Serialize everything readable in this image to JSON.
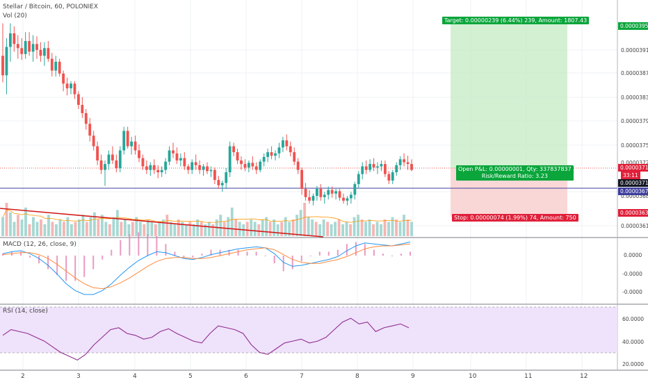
{
  "header": {
    "symbol": "Stellar / Bitcoin, 60, POLONIEX",
    "volume_label": "Vol (20)"
  },
  "panes": {
    "macd_label": "MACD (12, 26, close, 9)",
    "rsi_label": "RSI (14, close)"
  },
  "position": {
    "target_label": "Target: 0.00000239 (6.44%) 239, Amount: 1807.43",
    "stop_label": "Stop: 0.00000074 (1.99%) 74, Amount: 750",
    "pnl_label": "Open P&L: 0.00000001, Qty: 337837837",
    "rr_label": "Risk/Reward Ratio: 3.23"
  },
  "price_axis": {
    "ticks": [
      "0.00003910",
      "0.00003870",
      "0.00003830",
      "0.00003790",
      "0.00003750",
      "0.00003720",
      "0.00003685",
      "0.00003615"
    ],
    "tags": {
      "target": "0.00003950",
      "current": "0.00003712",
      "countdown": "33:11",
      "entry": "0.00003711",
      "avg": "0.00003677",
      "stop": "0.00003637"
    }
  },
  "macd_axis": {
    "ticks": [
      "0.0000",
      "-0.0000",
      "-0.0000"
    ]
  },
  "rsi_axis": {
    "ticks": [
      "60.0000",
      "40.0000",
      "20.0000"
    ]
  },
  "time_axis": {
    "ticks": [
      "2",
      "3",
      "4",
      "5",
      "6",
      "7",
      "8",
      "9",
      "10",
      "11",
      "12"
    ]
  },
  "colors": {
    "up": "#26a69a",
    "down": "#ef5350",
    "target_zone": "#c8ecc8",
    "stop_zone": "#f9cdcd",
    "tag_green": "#0aa53b",
    "tag_red": "#e0203a",
    "tag_dark": "#131722",
    "tag_blue": "#3d3d9e",
    "macd_line": "#2196f3",
    "signal_line": "#ff8a3d",
    "rsi_line": "#8e2d8e",
    "rsi_band": "#efe2fb",
    "trendline": "#d11a1a"
  },
  "chart_data": [
    {
      "type": "candlestick",
      "title": "Stellar / Bitcoin, 60, POLONIEX",
      "x_ticks": [
        "2",
        "3",
        "4",
        "5",
        "6",
        "7",
        "8",
        "9",
        "10",
        "11",
        "12"
      ],
      "ylim": [
        3.6e-05,
        3.97e-05
      ],
      "points": [
        [
          3.905e-05,
          3.96e-05,
          3.86e-05,
          3.872e-05
        ],
        [
          3.872e-05,
          3.935e-05,
          3.84e-05,
          3.92e-05
        ],
        [
          3.92e-05,
          3.96e-05,
          3.895e-05,
          3.943e-05
        ],
        [
          3.943e-05,
          3.955e-05,
          3.912e-05,
          3.925e-05
        ],
        [
          3.925e-05,
          3.94e-05,
          3.9e-05,
          3.918e-05
        ],
        [
          3.918e-05,
          3.935e-05,
          3.898e-05,
          3.908e-05
        ],
        [
          3.908e-05,
          3.945e-05,
          3.9e-05,
          3.93e-05
        ],
        [
          3.93e-05,
          3.945e-05,
          3.905e-05,
          3.912e-05
        ],
        [
          3.912e-05,
          3.94e-05,
          3.895e-05,
          3.925e-05
        ],
        [
          3.925e-05,
          3.938e-05,
          3.9e-05,
          3.915e-05
        ],
        [
          3.915e-05,
          3.928e-05,
          3.895e-05,
          3.905e-05
        ],
        [
          3.905e-05,
          3.928e-05,
          3.888e-05,
          3.918e-05
        ],
        [
          3.918e-05,
          3.93e-05,
          3.895e-05,
          3.9e-05
        ],
        [
          3.9e-05,
          3.91e-05,
          3.87e-05,
          3.88e-05
        ],
        [
          3.88e-05,
          3.905e-05,
          3.87e-05,
          3.895e-05
        ],
        [
          3.895e-05,
          3.9e-05,
          3.87e-05,
          3.875e-05
        ],
        [
          3.875e-05,
          3.88e-05,
          3.845e-05,
          3.858e-05
        ],
        [
          3.858e-05,
          3.868e-05,
          3.838e-05,
          3.85e-05
        ],
        [
          3.85e-05,
          3.862e-05,
          3.84e-05,
          3.858e-05
        ],
        [
          3.858e-05,
          3.862e-05,
          3.832e-05,
          3.84e-05
        ],
        [
          3.84e-05,
          3.845e-05,
          3.815e-05,
          3.822e-05
        ],
        [
          3.822e-05,
          3.835e-05,
          3.8e-05,
          3.808e-05
        ],
        [
          3.808e-05,
          3.815e-05,
          3.78e-05,
          3.79e-05
        ],
        [
          3.79e-05,
          3.8e-05,
          3.76e-05,
          3.77e-05
        ],
        [
          3.77e-05,
          3.778e-05,
          3.745e-05,
          3.752e-05
        ],
        [
          3.752e-05,
          3.76e-05,
          3.72e-05,
          3.728e-05
        ],
        [
          3.728e-05,
          3.738e-05,
          3.705e-05,
          3.712e-05
        ],
        [
          3.712e-05,
          3.728e-05,
          3.685e-05,
          3.722e-05
        ],
        [
          3.722e-05,
          3.745e-05,
          3.712e-05,
          3.738e-05
        ],
        [
          3.738e-05,
          3.752e-05,
          3.722e-05,
          3.728e-05
        ],
        [
          3.728e-05,
          3.738e-05,
          3.708e-05,
          3.715e-05
        ],
        [
          3.715e-05,
          3.752e-05,
          3.708e-05,
          3.745e-05
        ],
        [
          3.745e-05,
          3.785e-05,
          3.738e-05,
          3.778e-05
        ],
        [
          3.778e-05,
          3.785e-05,
          3.748e-05,
          3.752e-05
        ],
        [
          3.752e-05,
          3.768e-05,
          3.738e-05,
          3.76e-05
        ],
        [
          3.76e-05,
          3.77e-05,
          3.738e-05,
          3.745e-05
        ],
        [
          3.745e-05,
          3.755e-05,
          3.725e-05,
          3.732e-05
        ],
        [
          3.732e-05,
          3.738e-05,
          3.712e-05,
          3.718e-05
        ],
        [
          3.718e-05,
          3.728e-05,
          3.705e-05,
          3.712e-05
        ],
        [
          3.712e-05,
          3.725e-05,
          3.702e-05,
          3.72e-05
        ],
        [
          3.72e-05,
          3.73e-05,
          3.705e-05,
          3.712e-05
        ],
        [
          3.712e-05,
          3.72e-05,
          3.698e-05,
          3.708e-05
        ],
        [
          3.708e-05,
          3.718e-05,
          3.7e-05,
          3.712e-05
        ],
        [
          3.712e-05,
          3.732e-05,
          3.705e-05,
          3.726e-05
        ],
        [
          3.726e-05,
          3.752e-05,
          3.72e-05,
          3.745e-05
        ],
        [
          3.745e-05,
          3.758e-05,
          3.732e-05,
          3.74e-05
        ],
        [
          3.74e-05,
          3.75e-05,
          3.722e-05,
          3.728e-05
        ],
        [
          3.728e-05,
          3.74e-05,
          3.718e-05,
          3.732e-05
        ],
        [
          3.732e-05,
          3.742e-05,
          3.712e-05,
          3.718e-05
        ],
        [
          3.718e-05,
          3.722e-05,
          3.705e-05,
          3.712e-05
        ],
        [
          3.712e-05,
          3.73e-05,
          3.705e-05,
          3.725e-05
        ],
        [
          3.725e-05,
          3.738e-05,
          3.712e-05,
          3.72e-05
        ],
        [
          3.72e-05,
          3.728e-05,
          3.705e-05,
          3.712e-05
        ],
        [
          3.712e-05,
          3.722e-05,
          3.702e-05,
          3.718e-05
        ],
        [
          3.718e-05,
          3.725e-05,
          3.705e-05,
          3.71e-05
        ],
        [
          3.71e-05,
          3.718e-05,
          3.7e-05,
          3.712e-05
        ],
        [
          3.712e-05,
          3.716e-05,
          3.688e-05,
          3.695e-05
        ],
        [
          3.695e-05,
          3.702e-05,
          3.68e-05,
          3.686e-05
        ],
        [
          3.686e-05,
          3.694e-05,
          3.675e-05,
          3.69e-05
        ],
        [
          3.69e-05,
          3.715e-05,
          3.68e-05,
          3.708e-05
        ],
        [
          3.708e-05,
          3.76e-05,
          3.7e-05,
          3.752e-05
        ],
        [
          3.752e-05,
          3.758e-05,
          3.735e-05,
          3.742e-05
        ],
        [
          3.742e-05,
          3.748e-05,
          3.722e-05,
          3.728e-05
        ],
        [
          3.728e-05,
          3.735e-05,
          3.712e-05,
          3.722e-05
        ],
        [
          3.722e-05,
          3.73e-05,
          3.71e-05,
          3.716e-05
        ],
        [
          3.716e-05,
          3.728e-05,
          3.708e-05,
          3.724e-05
        ],
        [
          3.724e-05,
          3.735e-05,
          3.712e-05,
          3.718e-05
        ],
        [
          3.718e-05,
          3.725e-05,
          3.705e-05,
          3.712e-05
        ],
        [
          3.712e-05,
          3.73e-05,
          3.708e-05,
          3.726e-05
        ],
        [
          3.726e-05,
          3.74e-05,
          3.718e-05,
          3.734e-05
        ],
        [
          3.734e-05,
          3.748e-05,
          3.725e-05,
          3.742e-05
        ],
        [
          3.742e-05,
          3.752e-05,
          3.73e-05,
          3.736e-05
        ],
        [
          3.736e-05,
          3.745e-05,
          3.728e-05,
          3.74e-05
        ],
        [
          3.74e-05,
          3.758e-05,
          3.732e-05,
          3.75e-05
        ],
        [
          3.75e-05,
          3.768e-05,
          3.742e-05,
          3.762e-05
        ],
        [
          3.762e-05,
          3.772e-05,
          3.745e-05,
          3.752e-05
        ],
        [
          3.752e-05,
          3.76e-05,
          3.735e-05,
          3.742e-05
        ],
        [
          3.742e-05,
          3.75e-05,
          3.72e-05,
          3.726e-05
        ],
        [
          3.726e-05,
          3.732e-05,
          3.705e-05,
          3.712e-05
        ],
        [
          3.712e-05,
          3.716e-05,
          3.67e-05,
          3.68e-05
        ],
        [
          3.68e-05,
          3.69e-05,
          3.66e-05,
          3.666e-05
        ],
        [
          3.666e-05,
          3.678e-05,
          3.655e-05,
          3.66e-05
        ],
        [
          3.66e-05,
          3.672e-05,
          3.652e-05,
          3.668e-05
        ],
        [
          3.668e-05,
          3.685e-05,
          3.66e-05,
          3.68e-05
        ],
        [
          3.68e-05,
          3.688e-05,
          3.66e-05,
          3.666e-05
        ],
        [
          3.666e-05,
          3.675e-05,
          3.655e-05,
          3.67e-05
        ],
        [
          3.67e-05,
          3.684e-05,
          3.662e-05,
          3.678e-05
        ],
        [
          3.678e-05,
          3.684e-05,
          3.665e-05,
          3.672e-05
        ],
        [
          3.672e-05,
          3.68e-05,
          3.662e-05,
          3.676e-05
        ],
        [
          3.676e-05,
          3.68e-05,
          3.66e-05,
          3.665e-05
        ],
        [
          3.665e-05,
          3.672e-05,
          3.655e-05,
          3.66e-05
        ],
        [
          3.66e-05,
          3.668e-05,
          3.652e-05,
          3.664e-05
        ],
        [
          3.664e-05,
          3.675e-05,
          3.655e-05,
          3.67e-05
        ],
        [
          3.67e-05,
          3.692e-05,
          3.662e-05,
          3.688e-05
        ],
        [
          3.688e-05,
          3.71e-05,
          3.682e-05,
          3.705e-05
        ],
        [
          3.705e-05,
          3.725e-05,
          3.696e-05,
          3.718e-05
        ],
        [
          3.718e-05,
          3.728e-05,
          3.705e-05,
          3.712e-05
        ],
        [
          3.712e-05,
          3.73e-05,
          3.708e-05,
          3.722e-05
        ],
        [
          3.722e-05,
          3.732e-05,
          3.71e-05,
          3.716e-05
        ],
        [
          3.716e-05,
          3.725e-05,
          3.705e-05,
          3.718e-05
        ],
        [
          3.718e-05,
          3.728e-05,
          3.71e-05,
          3.722e-05
        ],
        [
          3.722e-05,
          3.728e-05,
          3.7e-05,
          3.705e-05
        ],
        [
          3.705e-05,
          3.71e-05,
          3.688e-05,
          3.694e-05
        ],
        [
          3.694e-05,
          3.712e-05,
          3.688e-05,
          3.708e-05
        ],
        [
          3.708e-05,
          3.725e-05,
          3.702e-05,
          3.72e-05
        ],
        [
          3.72e-05,
          3.735e-05,
          3.712e-05,
          3.73e-05
        ],
        [
          3.73e-05,
          3.74e-05,
          3.718e-05,
          3.725e-05
        ],
        [
          3.725e-05,
          3.736e-05,
          3.712e-05,
          3.722e-05
        ],
        [
          3.722e-05,
          3.73e-05,
          3.71e-05,
          3.712e-05
        ]
      ]
    },
    {
      "type": "bar",
      "title": "Vol (20)",
      "values": [
        8,
        14,
        10,
        6,
        9,
        7,
        12,
        5,
        8,
        6,
        7,
        5,
        9,
        6,
        5,
        7,
        6,
        8,
        5,
        6,
        7,
        9,
        6,
        8,
        10,
        7,
        9,
        6,
        5,
        8,
        11,
        6,
        7,
        5,
        6,
        8,
        6,
        5,
        7,
        6,
        5,
        6,
        7,
        9,
        6,
        5,
        7,
        6,
        5,
        6,
        5,
        7,
        6,
        5,
        6,
        5,
        7,
        9,
        6,
        8,
        12,
        7,
        6,
        5,
        6,
        7,
        6,
        5,
        7,
        8,
        6,
        7,
        5,
        6,
        8,
        6,
        7,
        9,
        11,
        14,
        8,
        7,
        6,
        5,
        7,
        6,
        5,
        6,
        7,
        5,
        6,
        5,
        8,
        9,
        7,
        6,
        7,
        5,
        6,
        5,
        7,
        6,
        8,
        7,
        6,
        9,
        7,
        6
      ]
    },
    {
      "type": "line",
      "title": "MACD (12, 26, close, 9)",
      "series": [
        {
          "values": [
            0.2,
            0.4,
            0.5,
            0.2,
            -0.3,
            -1.0,
            -1.9,
            -2.9,
            -3.6,
            -4.0,
            -4.0,
            -3.6,
            -2.9,
            -2.0,
            -1.2,
            -0.5,
            0.0,
            0.4,
            0.3,
            0.0,
            -0.3,
            -0.4,
            -0.2,
            0.1,
            0.3,
            0.5,
            0.7,
            0.8,
            0.9,
            0.8,
            0.2,
            -0.7,
            -1.1,
            -1.0,
            -0.8,
            -0.6,
            -0.4,
            -0.1,
            0.5,
            1.0,
            1.3,
            1.2,
            1.1,
            1.0,
            1.2,
            1.4
          ]
        },
        {
          "values": [
            0.1,
            0.2,
            0.3,
            0.3,
            0.1,
            -0.3,
            -0.9,
            -1.6,
            -2.3,
            -2.9,
            -3.3,
            -3.4,
            -3.2,
            -2.8,
            -2.3,
            -1.7,
            -1.1,
            -0.6,
            -0.3,
            -0.2,
            -0.2,
            -0.3,
            -0.3,
            -0.2,
            0.0,
            0.2,
            0.4,
            0.6,
            0.7,
            0.8,
            0.6,
            0.1,
            -0.4,
            -0.7,
            -0.8,
            -0.8,
            -0.6,
            -0.4,
            -0.1,
            0.3,
            0.7,
            0.9,
            1.0,
            1.0,
            1.1,
            1.2
          ]
        }
      ]
    },
    {
      "type": "line",
      "title": "RSI (14, close)",
      "ylim": [
        15,
        72
      ],
      "series": [
        {
          "values": [
            48,
            54,
            52,
            50,
            46,
            42,
            36,
            30,
            26,
            22,
            28,
            38,
            46,
            54,
            56,
            50,
            48,
            44,
            46,
            52,
            55,
            50,
            46,
            42,
            40,
            50,
            58,
            56,
            54,
            50,
            38,
            30,
            28,
            34,
            40,
            42,
            44,
            40,
            42,
            46,
            54,
            62,
            66,
            60,
            62,
            52,
            56,
            58,
            60,
            56
          ]
        }
      ]
    }
  ]
}
